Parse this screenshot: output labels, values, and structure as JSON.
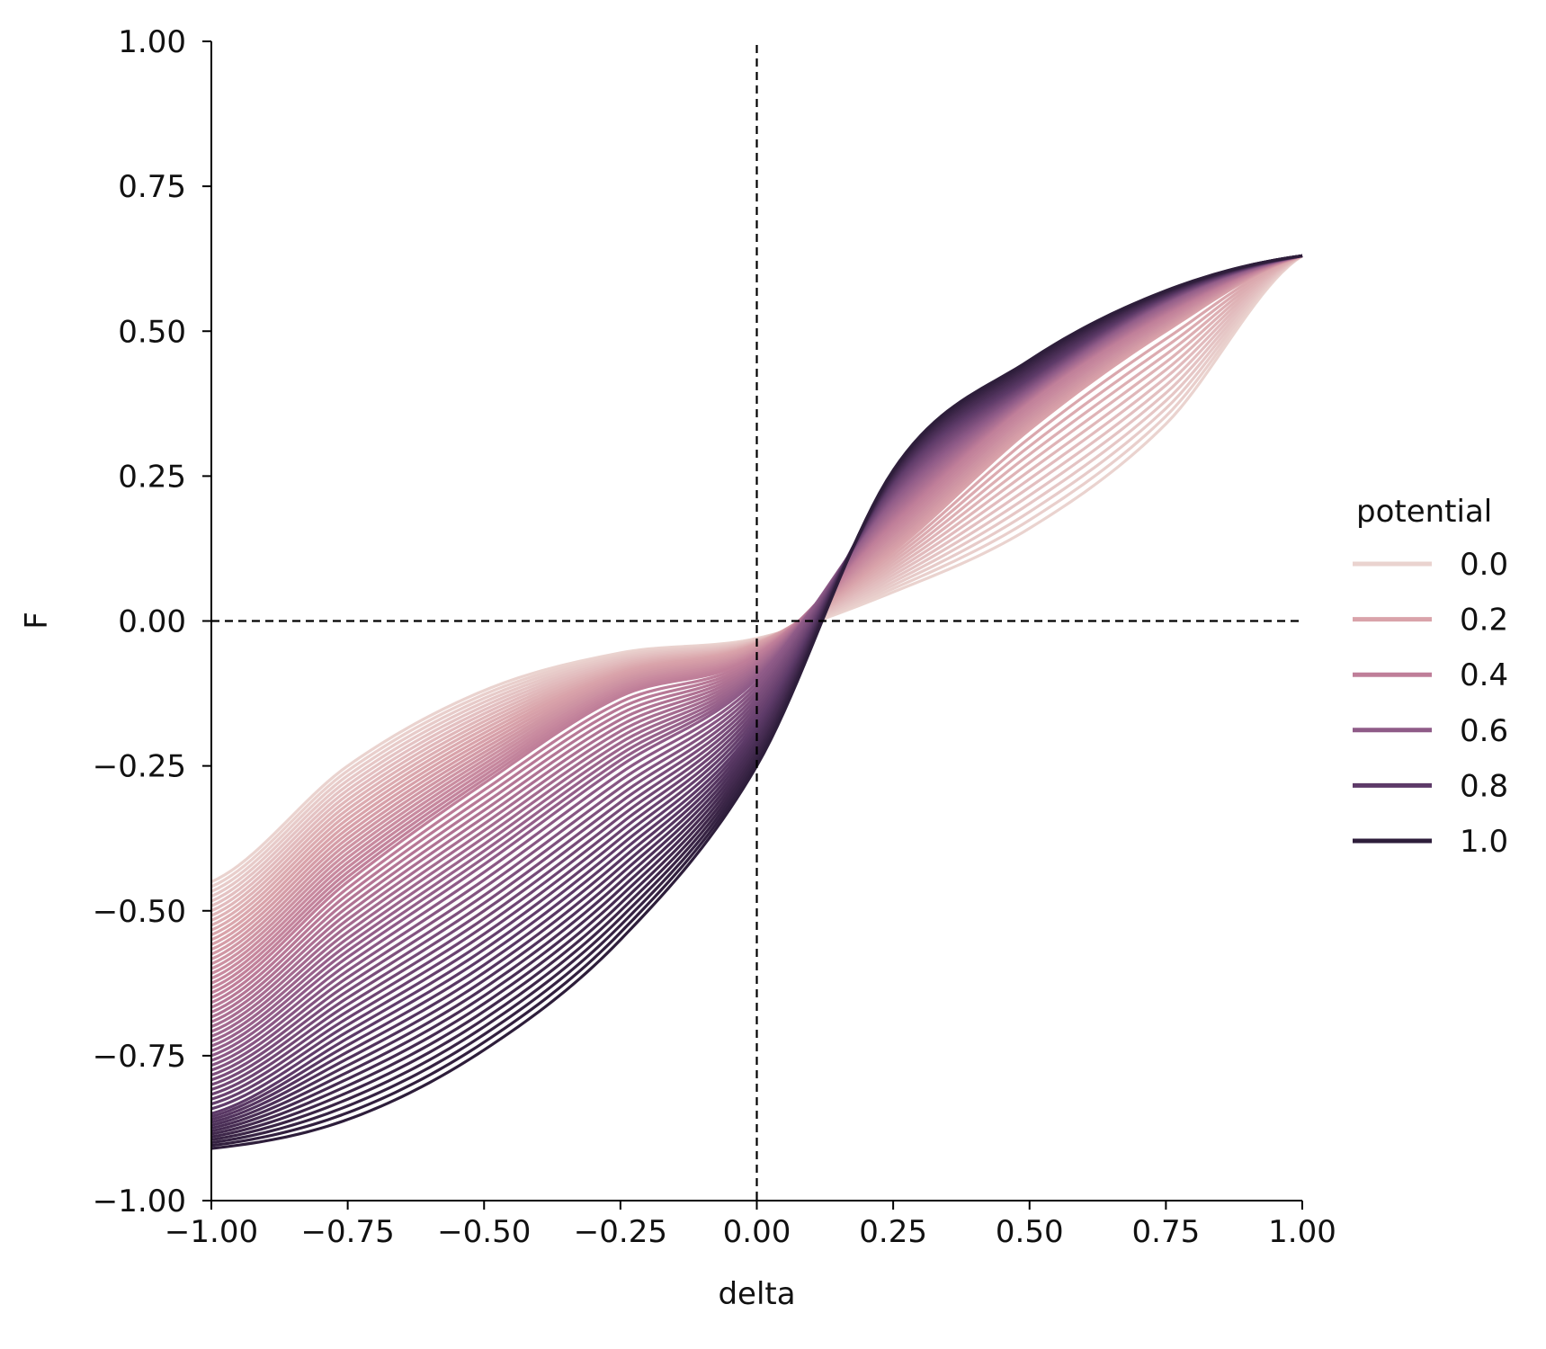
{
  "chart_data": {
    "type": "line",
    "title": "",
    "xlabel": "delta",
    "ylabel": "F",
    "xlim": [
      -1.0,
      1.0
    ],
    "ylim": [
      -1.0,
      1.0
    ],
    "xticks": [
      "−1.00",
      "−0.75",
      "−0.50",
      "−0.25",
      "0.00",
      "0.25",
      "0.50",
      "0.75",
      "1.00"
    ],
    "yticks": [
      "−1.00",
      "−0.75",
      "−0.50",
      "−0.25",
      "0.00",
      "0.25",
      "0.50",
      "0.75",
      "1.00"
    ],
    "grid": false,
    "reference_lines": [
      {
        "orientation": "vertical",
        "value": 0.0,
        "style": "dashed",
        "color": "#000000"
      },
      {
        "orientation": "horizontal",
        "value": 0.0,
        "style": "dashed",
        "color": "#000000"
      }
    ],
    "legend": {
      "title": "potential",
      "placement": "right",
      "entries": [
        {
          "label": "0.0",
          "color": "#ead3cf"
        },
        {
          "label": "0.2",
          "color": "#d9a3aa"
        },
        {
          "label": "0.4",
          "color": "#bf7e99"
        },
        {
          "label": "0.6",
          "color": "#8f5b88"
        },
        {
          "label": "0.8",
          "color": "#5d3a68"
        },
        {
          "label": "1.0",
          "color": "#2e1e3b"
        }
      ]
    },
    "series": [
      {
        "name": "0.0",
        "x": [
          -1.0,
          -0.75,
          -0.5,
          -0.25,
          0.0,
          0.25,
          0.5,
          0.75,
          1.0
        ],
        "y": [
          -0.45,
          -0.25,
          -0.12,
          -0.055,
          -0.03,
          0.05,
          0.16,
          0.34,
          0.63
        ]
      },
      {
        "name": "0.2",
        "x": [
          -1.0,
          -0.75,
          -0.5,
          -0.25,
          0.0,
          0.25,
          0.5,
          0.75,
          1.0
        ],
        "y": [
          -0.55,
          -0.35,
          -0.2,
          -0.09,
          -0.04,
          0.12,
          0.33,
          0.5,
          0.63
        ]
      },
      {
        "name": "0.4",
        "x": [
          -1.0,
          -0.75,
          -0.5,
          -0.25,
          0.0,
          0.25,
          0.5,
          0.75,
          1.0
        ],
        "y": [
          -0.65,
          -0.45,
          -0.28,
          -0.13,
          -0.06,
          0.17,
          0.38,
          0.53,
          0.63
        ]
      },
      {
        "name": "0.6",
        "x": [
          -1.0,
          -0.75,
          -0.5,
          -0.25,
          0.0,
          0.25,
          0.5,
          0.75,
          1.0
        ],
        "y": [
          -0.75,
          -0.58,
          -0.42,
          -0.25,
          -0.1,
          0.21,
          0.4,
          0.55,
          0.63
        ]
      },
      {
        "name": "0.8",
        "x": [
          -1.0,
          -0.75,
          -0.5,
          -0.25,
          0.0,
          0.25,
          0.5,
          0.75,
          1.0
        ],
        "y": [
          -0.85,
          -0.72,
          -0.58,
          -0.4,
          -0.18,
          0.24,
          0.42,
          0.56,
          0.63
        ]
      },
      {
        "name": "1.0",
        "x": [
          -1.0,
          -0.75,
          -0.5,
          -0.25,
          0.0,
          0.25,
          0.5,
          0.75,
          1.0
        ],
        "y": [
          -0.91,
          -0.86,
          -0.74,
          -0.55,
          -0.25,
          0.26,
          0.45,
          0.57,
          0.63
        ]
      }
    ]
  }
}
